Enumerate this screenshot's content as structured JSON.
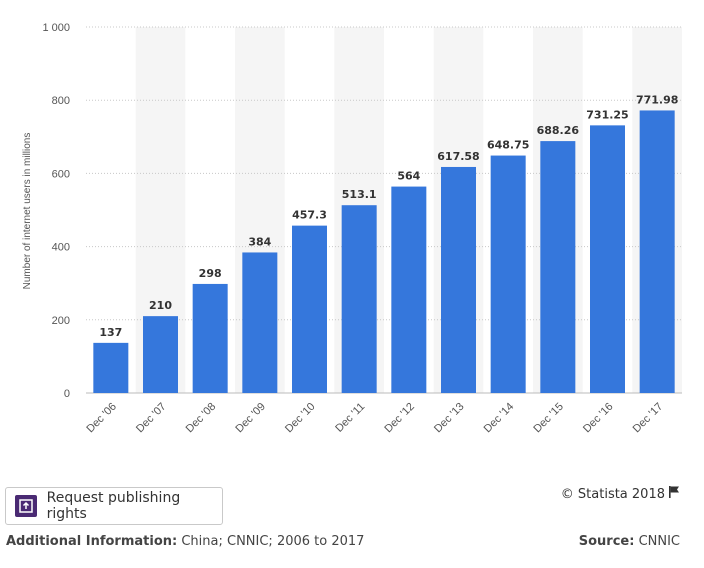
{
  "chart_data": {
    "type": "bar",
    "categories": [
      "Dec '06",
      "Dec '07",
      "Dec '08",
      "Dec '09",
      "Dec '10",
      "Dec '11",
      "Dec '12",
      "Dec '13",
      "Dec '14",
      "Dec '15",
      "Dec '16",
      "Dec '17"
    ],
    "values": [
      137,
      210,
      298,
      384,
      457.3,
      513.1,
      564,
      617.58,
      648.75,
      688.26,
      731.25,
      771.98
    ],
    "data_labels": [
      "137",
      "210",
      "298",
      "384",
      "457.3",
      "513.1",
      "564",
      "617.58",
      "648.75",
      "688.26",
      "731.25",
      "771.98"
    ],
    "ylabel": "Number of internet users in millions",
    "ylim": [
      0,
      1000
    ],
    "yticks": [
      0,
      200,
      400,
      600,
      800,
      1000
    ],
    "ytick_labels": [
      "0",
      "200",
      "400",
      "600",
      "800",
      "1 000"
    ],
    "grid": true,
    "bar_color": "#3577dc",
    "band_color": "#f5f5f5"
  },
  "publish": {
    "label": "Request publishing rights",
    "icon": "publish-icon"
  },
  "credit": {
    "text": "© Statista 2018",
    "icon": "flag-icon"
  },
  "footer": {
    "info_label": "Additional Information:",
    "info_value": "China; CNNIC; 2006 to 2017",
    "source_label": "Source:",
    "source_value": "CNNIC"
  }
}
